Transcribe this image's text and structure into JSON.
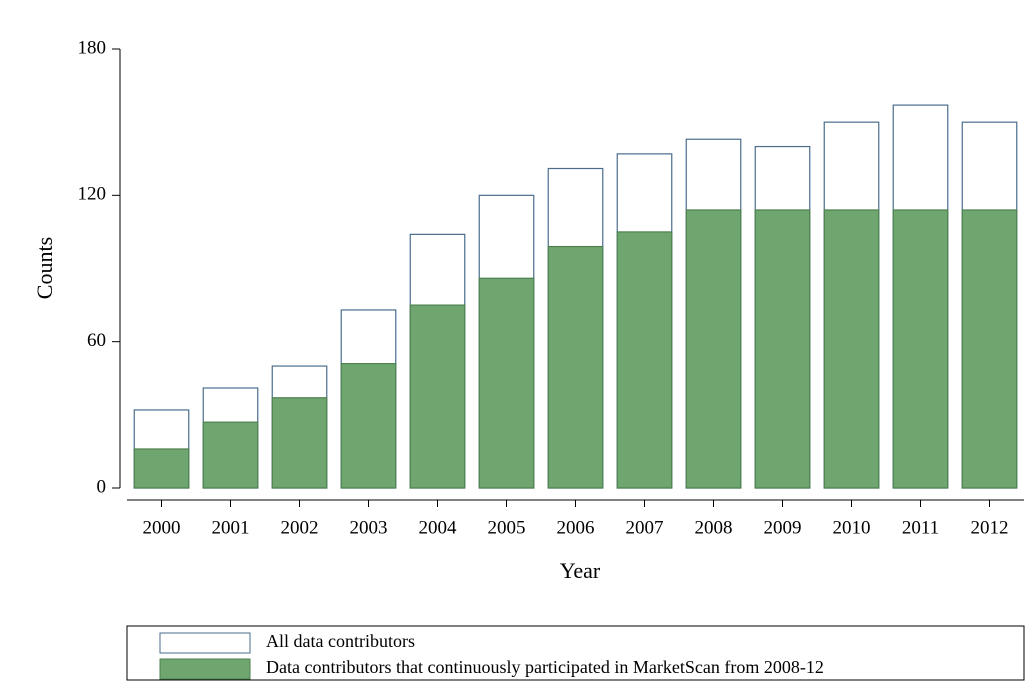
{
  "chart_data": {
    "type": "bar",
    "barmode": "overlay",
    "xlabel": "Year",
    "ylabel": "Counts",
    "categories": [
      "2000",
      "2001",
      "2002",
      "2003",
      "2004",
      "2005",
      "2006",
      "2007",
      "2008",
      "2009",
      "2010",
      "2011",
      "2012"
    ],
    "series": [
      {
        "name": "All data contributors",
        "color": "#ffffff",
        "stroke": "#4a6d8c",
        "values": [
          32,
          41,
          50,
          73,
          104,
          120,
          131,
          137,
          143,
          140,
          150,
          157,
          150
        ]
      },
      {
        "name": "Data contributors that continuously participated in MarketScan from 2008-12",
        "color": "#6fa66f",
        "stroke": "#4e8050",
        "values": [
          16,
          27,
          37,
          51,
          75,
          86,
          99,
          105,
          114,
          114,
          114,
          114,
          114
        ]
      }
    ],
    "ylim": [
      0,
      180
    ],
    "yticks": [
      0,
      60,
      120,
      180
    ],
    "grid": false,
    "legend": "bottom"
  }
}
